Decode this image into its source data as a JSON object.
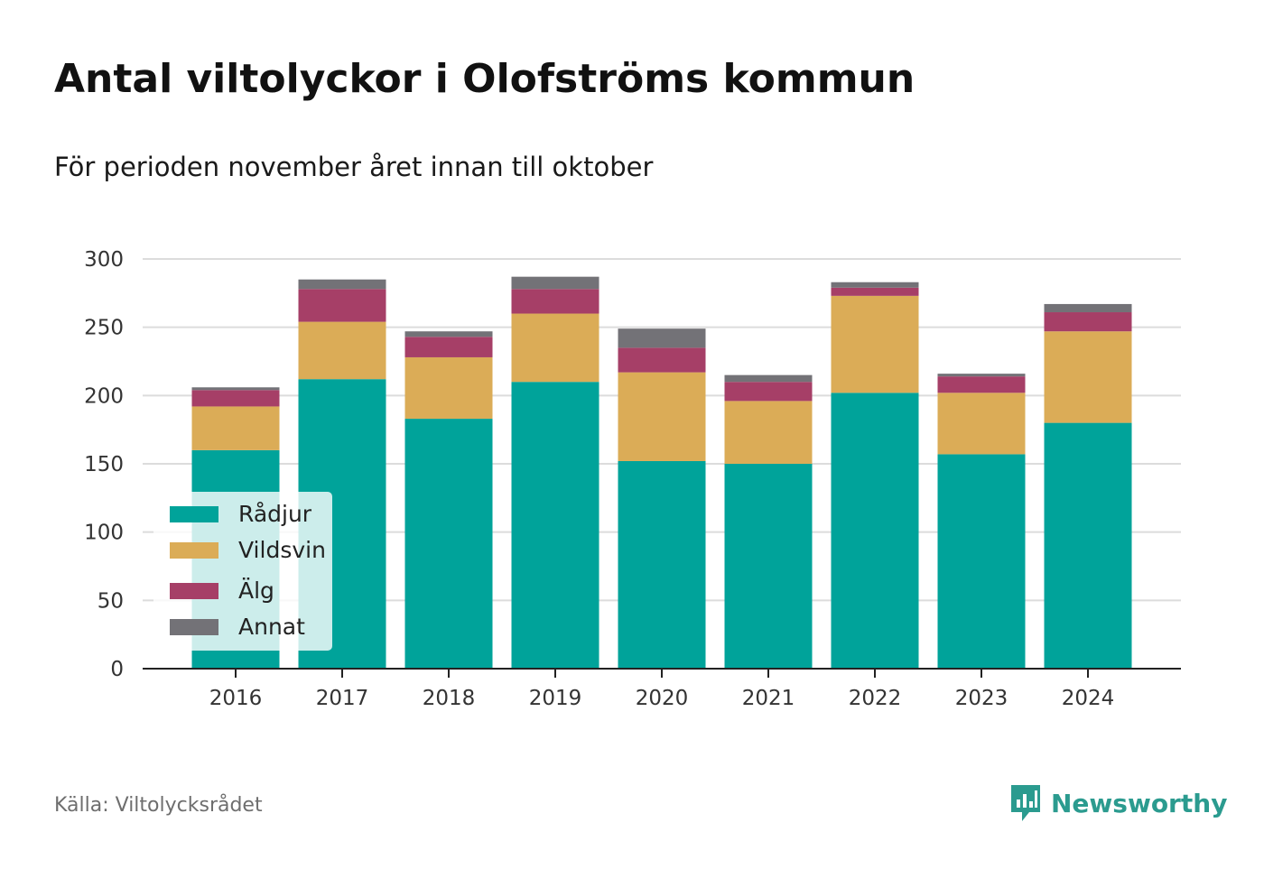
{
  "header": {
    "title": "Antal viltolyckor i Olofströms kommun",
    "subtitle": "För perioden november året innan till oktober"
  },
  "footer": {
    "source": "Källa: Viltolycksrådet",
    "brand": "Newsworthy",
    "brand_icon": "newsworthy-logo-icon",
    "brand_color": "#2b9b8f"
  },
  "chart_data": {
    "type": "bar",
    "stacked": true,
    "categories": [
      "2016",
      "2017",
      "2018",
      "2019",
      "2020",
      "2021",
      "2022",
      "2023",
      "2024"
    ],
    "series": [
      {
        "name": "Rådjur",
        "color": "#00a39a",
        "values": [
          160,
          212,
          183,
          210,
          152,
          150,
          202,
          157,
          180
        ]
      },
      {
        "name": "Vildsvin",
        "color": "#dbac57",
        "values": [
          32,
          42,
          45,
          50,
          65,
          46,
          71,
          45,
          67
        ]
      },
      {
        "name": "Älg",
        "color": "#a63f67",
        "values": [
          12,
          24,
          15,
          18,
          18,
          14,
          6,
          12,
          14
        ]
      },
      {
        "name": "Annat",
        "color": "#737277",
        "values": [
          2,
          7,
          4,
          9,
          14,
          5,
          4,
          2,
          6
        ]
      }
    ],
    "yticks": [
      0,
      50,
      100,
      150,
      200,
      250,
      300
    ],
    "ylim": [
      0,
      300
    ],
    "grid": true,
    "legend": "bottom-left",
    "xlabel": "",
    "ylabel": ""
  }
}
